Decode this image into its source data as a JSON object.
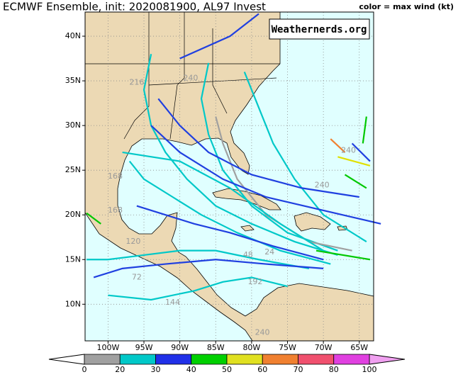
{
  "title": "ECMWF Ensemble, init: 2020081900, AL97 Invest",
  "legend_note": "color = max wind (kt)",
  "watermark": "Weathernerds.org",
  "map": {
    "xlim": [
      -103.2,
      -63
    ],
    "ylim": [
      5.9,
      42.7
    ],
    "xticks": [
      {
        "value": -100,
        "label": "100W"
      },
      {
        "value": -95,
        "label": "95W"
      },
      {
        "value": -90,
        "label": "90W"
      },
      {
        "value": -85,
        "label": "85W"
      },
      {
        "value": -80,
        "label": "80W"
      },
      {
        "value": -75,
        "label": "75W"
      },
      {
        "value": -70,
        "label": "70W"
      },
      {
        "value": -65,
        "label": "65W"
      }
    ],
    "yticks": [
      {
        "value": 10,
        "label": "10N"
      },
      {
        "value": 15,
        "label": "15N"
      },
      {
        "value": 20,
        "label": "20N"
      },
      {
        "value": 25,
        "label": "25N"
      },
      {
        "value": 30,
        "label": "30N"
      },
      {
        "value": 35,
        "label": "35N"
      },
      {
        "value": 40,
        "label": "40N"
      }
    ],
    "tracks": [
      {
        "color": "#00c8c8",
        "points": [
          [
            -68,
            15.5
          ],
          [
            -74,
            17
          ],
          [
            -80,
            19
          ],
          [
            -85,
            21
          ],
          [
            -89,
            24
          ],
          [
            -92,
            27
          ],
          [
            -94,
            30
          ],
          [
            -95,
            34
          ],
          [
            -94,
            38
          ]
        ]
      },
      {
        "color": "#00c8c8",
        "points": [
          [
            -69,
            14.5
          ],
          [
            -76,
            16
          ],
          [
            -82,
            18
          ],
          [
            -87,
            20
          ],
          [
            -91,
            22
          ],
          [
            -95,
            24
          ],
          [
            -97,
            26
          ]
        ]
      },
      {
        "color": "#2040e0",
        "points": [
          [
            -70,
            15
          ],
          [
            -77,
            16.5
          ],
          [
            -83,
            18
          ],
          [
            -88,
            19
          ],
          [
            -92,
            20
          ],
          [
            -96,
            21
          ]
        ]
      },
      {
        "color": "#00c8c8",
        "points": [
          [
            -68,
            16
          ],
          [
            -75,
            18
          ],
          [
            -80,
            21
          ],
          [
            -84,
            25
          ],
          [
            -86,
            29
          ],
          [
            -87,
            33
          ],
          [
            -86,
            37
          ]
        ]
      },
      {
        "color": "#00c8c8",
        "points": [
          [
            -72,
            14
          ],
          [
            -79,
            15
          ],
          [
            -85,
            16
          ],
          [
            -90,
            16
          ],
          [
            -95,
            15.5
          ],
          [
            -100,
            15
          ],
          [
            -103,
            15
          ]
        ]
      },
      {
        "color": "#2040e0",
        "points": [
          [
            -70,
            14
          ],
          [
            -78,
            14.5
          ],
          [
            -85,
            15
          ],
          [
            -92,
            14.5
          ],
          [
            -98,
            14
          ],
          [
            -102,
            13
          ]
        ]
      },
      {
        "color": "#a0a0a0",
        "points": [
          [
            -66,
            16
          ],
          [
            -72,
            17
          ],
          [
            -78,
            20
          ],
          [
            -82,
            24
          ],
          [
            -84,
            28
          ],
          [
            -85,
            31
          ]
        ]
      },
      {
        "color": "#00c8c8",
        "points": [
          [
            -64,
            17
          ],
          [
            -70,
            20
          ],
          [
            -74,
            24
          ],
          [
            -77,
            28
          ],
          [
            -79,
            32
          ],
          [
            -81,
            36
          ]
        ]
      },
      {
        "color": "#2040e0",
        "points": [
          [
            -62,
            19
          ],
          [
            -70,
            20.5
          ],
          [
            -78,
            22
          ],
          [
            -84,
            24
          ],
          [
            -90,
            27
          ],
          [
            -94,
            30
          ]
        ]
      },
      {
        "color": "#00c800",
        "points": [
          [
            -67,
            24.5
          ],
          [
            -64,
            23
          ]
        ]
      },
      {
        "color": "#00c800",
        "points": [
          [
            -64,
            31
          ],
          [
            -64.5,
            28
          ]
        ]
      },
      {
        "color": "#2040e0",
        "points": [
          [
            -66,
            28
          ],
          [
            -63.5,
            26
          ]
        ]
      },
      {
        "color": "#f08030",
        "points": [
          [
            -69,
            28.5
          ],
          [
            -67,
            27
          ]
        ]
      },
      {
        "color": "#e0e000",
        "points": [
          [
            -68,
            26.5
          ],
          [
            -63.5,
            25.5
          ]
        ]
      },
      {
        "color": "#00c8c8",
        "points": [
          [
            -75,
            12
          ],
          [
            -80,
            13
          ],
          [
            -84,
            12.5
          ],
          [
            -88,
            11.5
          ],
          [
            -94,
            10.5
          ],
          [
            -100,
            11
          ]
        ]
      },
      {
        "color": "#00c800",
        "points": [
          [
            -103,
            20.2
          ],
          [
            -101,
            19
          ]
        ]
      },
      {
        "color": "#00c800",
        "points": [
          [
            -71,
            16
          ],
          [
            -63.5,
            15
          ]
        ]
      },
      {
        "color": "#2040e0",
        "points": [
          [
            -90,
            37.5
          ],
          [
            -83,
            40
          ],
          [
            -79,
            42.5
          ]
        ]
      },
      {
        "color": "#00c8c8",
        "points": [
          [
            -70,
            16
          ],
          [
            -76,
            19
          ],
          [
            -83,
            23
          ],
          [
            -90,
            26
          ],
          [
            -98,
            27
          ]
        ]
      },
      {
        "color": "#2040e0",
        "points": [
          [
            -65,
            22
          ],
          [
            -73,
            23
          ],
          [
            -80,
            24.5
          ],
          [
            -86,
            27
          ],
          [
            -90,
            30
          ],
          [
            -93,
            33
          ]
        ]
      }
    ],
    "hour_labels": [
      {
        "text": "240",
        "lon": -88.5,
        "lat": 35.3
      },
      {
        "text": "216",
        "lon": -96,
        "lat": 34.8
      },
      {
        "text": "240",
        "lon": -66.5,
        "lat": 27.2
      },
      {
        "text": "240",
        "lon": -70.2,
        "lat": 23.3
      },
      {
        "text": "168",
        "lon": -99,
        "lat": 20.5
      },
      {
        "text": "120",
        "lon": -96.5,
        "lat": 17
      },
      {
        "text": "72",
        "lon": -96,
        "lat": 13
      },
      {
        "text": "48",
        "lon": -80.5,
        "lat": 15.5
      },
      {
        "text": "24",
        "lon": -77.5,
        "lat": 15.8
      },
      {
        "text": "192",
        "lon": -79.5,
        "lat": 12.5
      },
      {
        "text": "240",
        "lon": -78.5,
        "lat": 6.8
      },
      {
        "text": "144",
        "lon": -91,
        "lat": 10.2
      },
      {
        "text": "168",
        "lon": -99,
        "lat": 24.3
      }
    ]
  },
  "colorbar": {
    "bins": [
      0,
      20,
      30,
      40,
      50,
      60,
      70,
      80,
      100
    ],
    "colors": [
      "#a0a0a0",
      "#00c8c8",
      "#2030e8",
      "#00d000",
      "#e0e020",
      "#f08030",
      "#f0506e",
      "#e040e0"
    ],
    "under_color": "#ffffff",
    "over_color": "#f0a0f0"
  }
}
